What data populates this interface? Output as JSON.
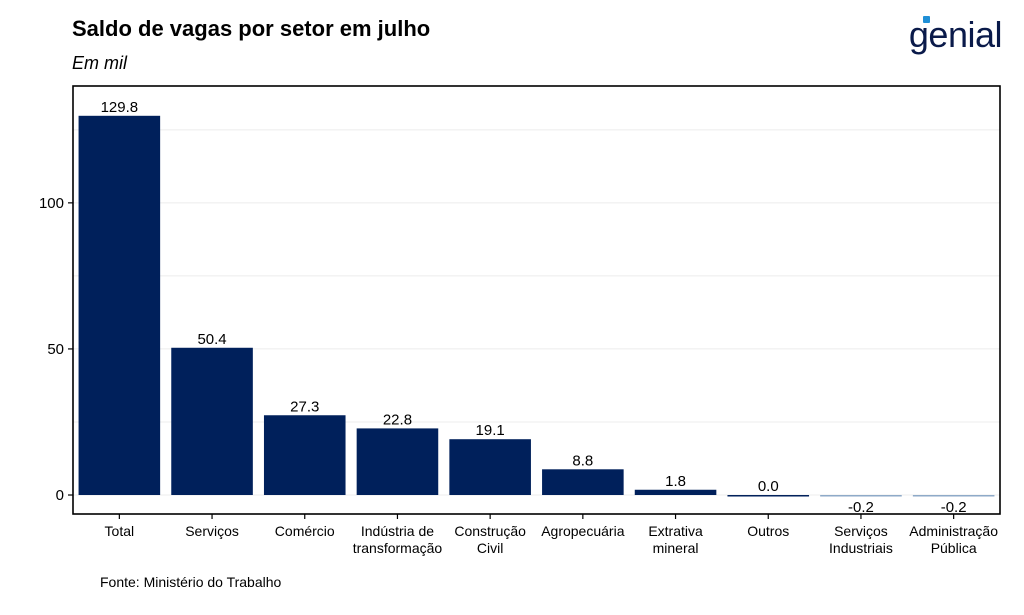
{
  "title": "Saldo de vagas por setor em julho",
  "subtitle": "Em mil",
  "logo": "genial",
  "source": "Fonte: Ministério do Trabalho",
  "colors": {
    "positive": "#00205B",
    "negative": "#8EA9C8",
    "logo": "#0a1a4a",
    "logo_accent": "#1f8fd6"
  },
  "chart_data": {
    "type": "bar",
    "categories": [
      [
        "Total"
      ],
      [
        "Serviços"
      ],
      [
        "Comércio"
      ],
      [
        "Indústria de",
        "transformação"
      ],
      [
        "Construção",
        "Civil"
      ],
      [
        "Agropecuária"
      ],
      [
        "Extrativa",
        "mineral"
      ],
      [
        "Outros"
      ],
      [
        "Serviços",
        "Industriais"
      ],
      [
        "Administração",
        "Pública"
      ]
    ],
    "values": [
      129.8,
      50.4,
      27.3,
      22.8,
      19.1,
      8.8,
      1.8,
      0.0,
      -0.2,
      -0.2
    ],
    "value_labels": [
      "129.8",
      "50.4",
      "27.3",
      "22.8",
      "19.1",
      "8.8",
      "1.8",
      "0.0",
      "-0.2",
      "-0.2"
    ],
    "yticks": [
      0,
      50,
      100
    ],
    "ylim": [
      -6.5,
      140
    ],
    "grid": "horizontal",
    "legend": "none"
  }
}
